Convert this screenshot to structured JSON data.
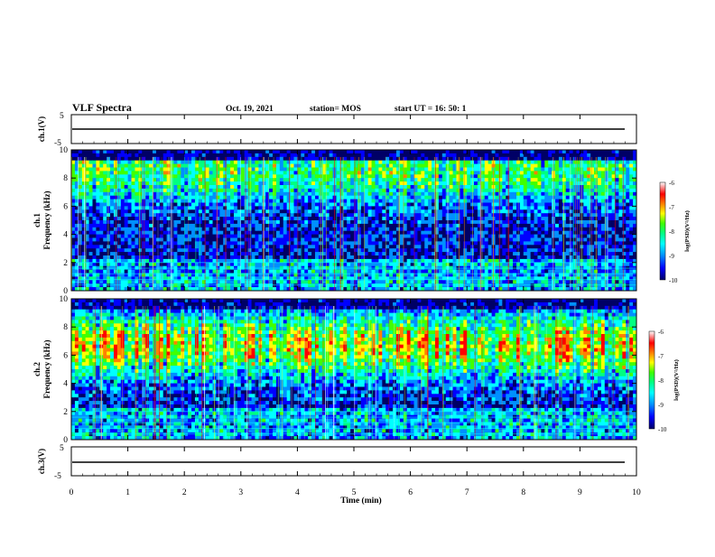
{
  "header": {
    "title": "VLF Spectra",
    "date": "Oct. 19, 2021",
    "station": "station= MOS",
    "start": "start  UT =   16: 50: 1"
  },
  "chart_data": [
    {
      "type": "line",
      "panel": "ch1",
      "ylabel": "ch.1(V)",
      "yticks": [
        "5",
        "-5"
      ],
      "ylim": [
        -5,
        5
      ],
      "xlim": [
        0,
        10
      ],
      "level": 0
    },
    {
      "type": "heatmap",
      "panel": "ch1-spectrogram",
      "ylabel_top": "ch.1",
      "ylabel": "Frequency (kHz)",
      "yticks": [
        "0",
        "2",
        "4",
        "6",
        "8",
        "10"
      ],
      "ylim": [
        0,
        10
      ],
      "xlim": [
        0,
        10
      ],
      "colorbar": {
        "label": "log(PSD)(V²/Hz)",
        "ticks": [
          "-6",
          "-7",
          "-8",
          "-9",
          "-10"
        ],
        "range": [
          -10,
          -6
        ],
        "colors": [
          "#000066",
          "#0000ff",
          "#0090ff",
          "#00ffff",
          "#00ff80",
          "#40ff00",
          "#ffff00",
          "#ff8000",
          "#ff0000",
          "#ffffff"
        ]
      },
      "band_energy": {
        "peak_khz": 8.5,
        "level": 0.55
      }
    },
    {
      "type": "heatmap",
      "panel": "ch2-spectrogram",
      "ylabel_top": "ch.2",
      "ylabel": "Frequency (kHz)",
      "yticks": [
        "0",
        "2",
        "4",
        "6",
        "8",
        "10"
      ],
      "ylim": [
        0,
        10
      ],
      "xlim": [
        0,
        10
      ],
      "colorbar": {
        "label": "log(PSD)(V²/Hz)",
        "ticks": [
          "-6",
          "-7",
          "-8",
          "-9",
          "-10"
        ],
        "range": [
          -10,
          -6
        ],
        "colors": [
          "#000066",
          "#0000ff",
          "#0090ff",
          "#00ffff",
          "#00ff80",
          "#40ff00",
          "#ffff00",
          "#ff8000",
          "#ff0000",
          "#ffffff"
        ]
      },
      "band_energy": {
        "peak_khz": 6.7,
        "level": 0.8
      }
    },
    {
      "type": "line",
      "panel": "ch3",
      "ylabel": "ch.3(V)",
      "yticks": [
        "5",
        "-5"
      ],
      "ylim": [
        -5,
        5
      ],
      "xlim": [
        0,
        10
      ],
      "level": 0
    }
  ],
  "xaxis": {
    "label": "Time (min)",
    "ticks": [
      "0",
      "1",
      "2",
      "3",
      "4",
      "5",
      "6",
      "7",
      "8",
      "9",
      "10"
    ]
  }
}
